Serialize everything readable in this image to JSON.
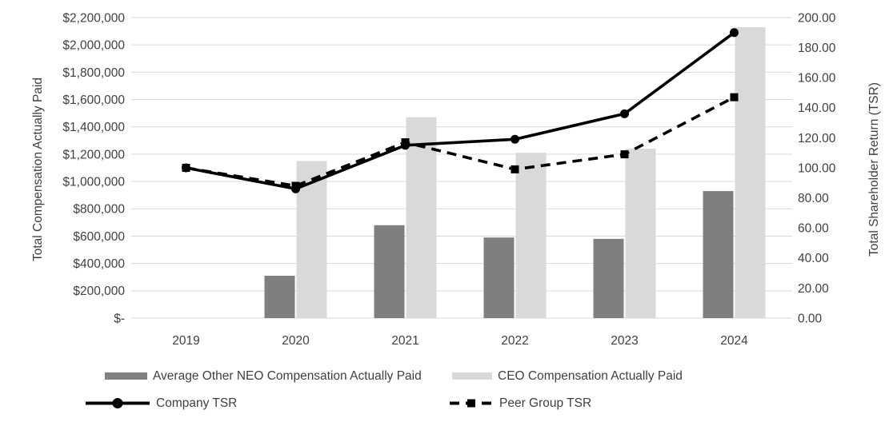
{
  "chart_data": {
    "type": "combo-bar-line",
    "title": "",
    "categories": [
      "2019",
      "2020",
      "2021",
      "2022",
      "2023",
      "2024"
    ],
    "bar_series": [
      {
        "name": "Average Other NEO Compensation Actually Paid",
        "color": "#7f7f7f",
        "values": [
          null,
          310000,
          680000,
          590000,
          580000,
          930000
        ]
      },
      {
        "name": "CEO Compensation Actually Paid",
        "color": "#d9d9d9",
        "values": [
          null,
          1150000,
          1470000,
          1210000,
          1240000,
          2130000
        ]
      }
    ],
    "line_series": [
      {
        "name": "Company TSR",
        "color": "#000000",
        "style": "solid",
        "marker": "circle",
        "values": [
          100,
          86,
          115,
          119,
          136,
          190
        ]
      },
      {
        "name": "Peer Group TSR",
        "color": "#000000",
        "style": "dashed",
        "marker": "square",
        "values": [
          100,
          88,
          117,
          99,
          109,
          147
        ]
      }
    ],
    "left_axis": {
      "title": "Total Compensation Actually Paid",
      "min": 0,
      "max": 2200000,
      "step": 200000,
      "tick_labels": [
        "$2,200,000",
        "$2,000,000",
        "$1,800,000",
        "$1,600,000",
        "$1,400,000",
        "$1,200,000",
        "$1,000,000",
        "$800,000",
        "$600,000",
        "$400,000",
        "$200,000",
        "$-"
      ]
    },
    "right_axis": {
      "title": "Total Shareholder Return (TSR)",
      "min": 0,
      "max": 200,
      "step": 20,
      "tick_labels": [
        "200.00",
        "180.00",
        "160.00",
        "140.00",
        "120.00",
        "100.00",
        "80.00",
        "60.00",
        "40.00",
        "20.00",
        "0.00"
      ]
    },
    "grid": true,
    "gridline_color": "#d9d9d9",
    "text_color": "#404040",
    "legend_position": "bottom"
  }
}
